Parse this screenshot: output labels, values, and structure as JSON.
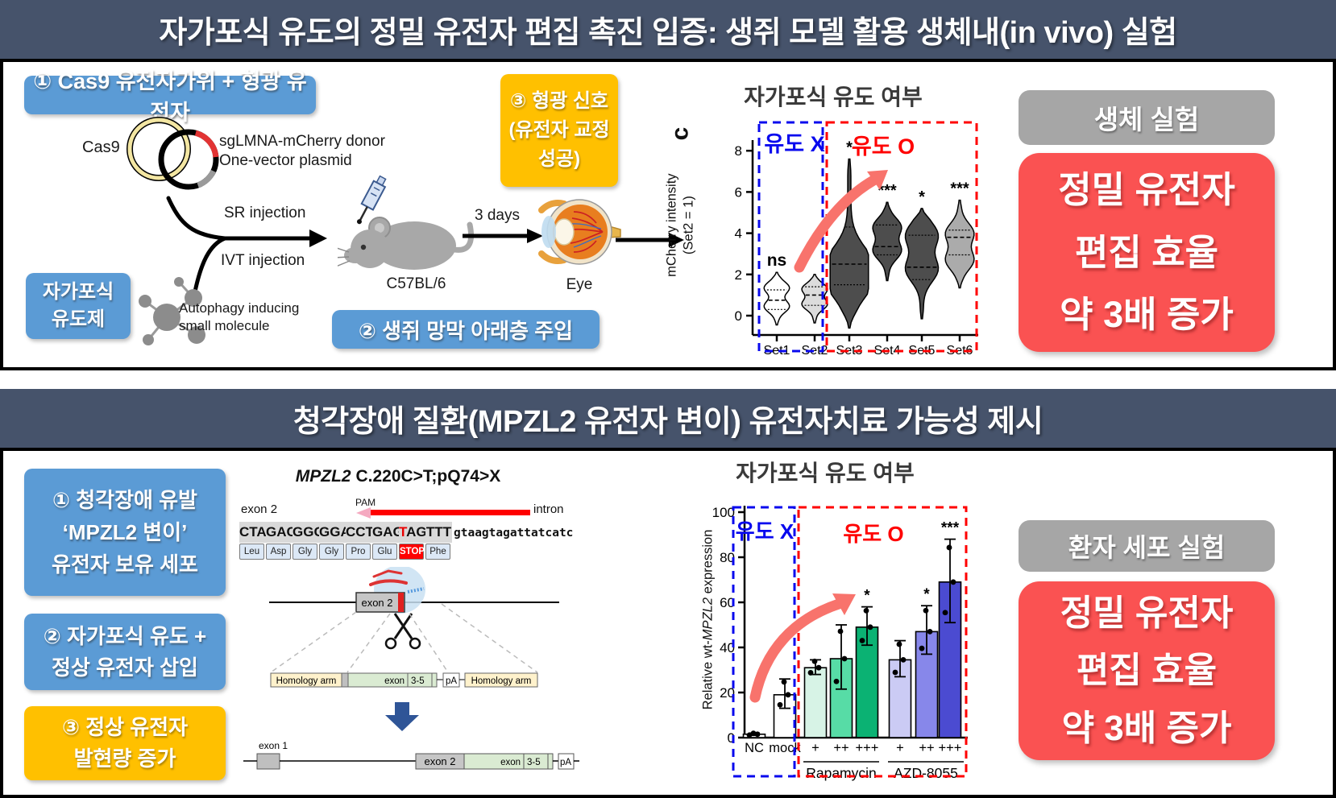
{
  "panel1": {
    "header": "자가포식 유도의 정밀 유전자 편집 촉진 입증: 생쥐 모델 활용 생체내(in vivo) 실험",
    "step1": "① Cas9 유전자가위 + 형광 유전자",
    "step2": "② 생쥐 망막 아래층 주입",
    "step3": [
      "③ 형광 신호",
      "(유전자 교정",
      "성공)"
    ],
    "inducer": [
      "자가포식",
      "유도제"
    ],
    "labels": {
      "cas9": "Cas9",
      "donor1": "sgLMNA-mCherry donor",
      "donor2": "One-vector plasmid",
      "sr": "SR injection",
      "ivt": "IVT injection",
      "molecule1": "Autophagy inducing",
      "molecule2": "small molecule",
      "mouse": "C57BL/6",
      "days": "3 days",
      "eye": "Eye",
      "panel_letter": "c"
    },
    "badge": "생체 실험",
    "result": [
      "정밀 유전자",
      "편집 효율",
      "약 3배 증가"
    ]
  },
  "panel2": {
    "header": "청각장애 질환(MPZL2 유전자 변이) 유전자치료 가능성 제시",
    "step1": [
      "① 청각장애 유발",
      "‘MPZL2 변이’",
      "유전자 보유 세포"
    ],
    "step2": [
      "② 자가포식 유도 +",
      "정상 유전자 삽입"
    ],
    "step3": [
      "③ 정상 유전자",
      "발현량 증가"
    ],
    "gene": {
      "title_gene": "MPZL2",
      "title_rest": " C.220C>T;pQ74>X",
      "exon2": "exon 2",
      "pam": "PAM",
      "intron": "intron",
      "codons": [
        "CTA",
        "GAC",
        "GGG",
        "GGA",
        "CCT",
        "GAG",
        "TAG",
        "TTT"
      ],
      "intron_seq": "gtaagtagattatcatc",
      "amino_acids": [
        "Leu",
        "Asp",
        "Gly",
        "Gly",
        "Pro",
        "Glu",
        "STOP",
        "Phe"
      ],
      "homology_arm": "Homology arm",
      "exon": "exon",
      "exon35": "3-5",
      "pa": "pA",
      "exon1": "exon 1",
      "exon2_box": "exon 2"
    },
    "badge": "환자 세포 실험",
    "result": [
      "정밀 유전자",
      "편집 효율",
      "약 3배 증가"
    ]
  },
  "chart_data": [
    {
      "type": "violin",
      "title": "자가포식 유도 여부",
      "ylabel_line1": "mCherry intensity",
      "ylabel_line2": "(Set2 = 1)",
      "ylim": [
        0,
        8
      ],
      "yticks": [
        0,
        2,
        4,
        6,
        8
      ],
      "categories": [
        "Set1",
        "Set2",
        "Set3",
        "Set4",
        "Set5",
        "Set6"
      ],
      "legend_no": "유도 X",
      "legend_yes": "유도 O",
      "groups": {
        "no_induction": [
          "Set1",
          "Set2"
        ],
        "induction": [
          "Set3",
          "Set4",
          "Set5",
          "Set6"
        ]
      },
      "violins": [
        {
          "set": "Set1",
          "range": [
            -0.45,
            2.1
          ],
          "bulges": [
            0.45,
            1.35
          ],
          "median": 0.75,
          "quartiles": [
            0.3,
            1.25
          ],
          "maxw": 34,
          "color": "#FFFFFF",
          "sig": "ns"
        },
        {
          "set": "Set2",
          "range": [
            -0.35,
            2.0
          ],
          "bulges": [
            0.55,
            1.3
          ],
          "median": 1.0,
          "quartiles": [
            0.5,
            1.4
          ],
          "maxw": 34,
          "color": "#DCDCDC",
          "sig": ""
        },
        {
          "set": "Set3",
          "range": [
            -0.6,
            7.6
          ],
          "bulges": [
            1.6,
            2.6
          ],
          "median": 2.5,
          "quartiles": [
            1.5,
            4.3
          ],
          "maxw": 46,
          "color": "#4D4D4D",
          "sig": "*"
        },
        {
          "set": "Set4",
          "range": [
            1.7,
            5.5
          ],
          "bulges": [
            3.15,
            4.3
          ],
          "median": 3.35,
          "quartiles": [
            2.95,
            4.4
          ],
          "maxw": 38,
          "color": "#4D4D4D",
          "sig": "***"
        },
        {
          "set": "Set5",
          "range": [
            -0.15,
            5.2
          ],
          "bulges": [
            2.25,
            3.9
          ],
          "median": 2.35,
          "quartiles": [
            1.75,
            3.9
          ],
          "maxw": 44,
          "color": "#4D4D4D",
          "sig": "*"
        },
        {
          "set": "Set6",
          "range": [
            1.35,
            5.6
          ],
          "bulges": [
            2.7,
            4.0
          ],
          "median": 3.8,
          "quartiles": [
            2.95,
            4.15
          ],
          "maxw": 38,
          "color": "#ABABAB",
          "sig": "***"
        }
      ]
    },
    {
      "type": "bar",
      "title": "자가포식 유도 여부",
      "ylabel_prefix": "Relative wt-",
      "ylabel_gene": "MPZL2",
      "ylabel_suffix": " expression",
      "ylim": [
        0,
        100
      ],
      "yticks": [
        0,
        20,
        40,
        60,
        80,
        100
      ],
      "categories": [
        "NC",
        "mock",
        "+",
        "++",
        "+++",
        "+",
        "++",
        "+++"
      ],
      "values": [
        1.5,
        19,
        31,
        35,
        49,
        34.5,
        47,
        69
      ],
      "err_low": [
        1,
        13,
        28,
        21.5,
        41,
        27,
        37,
        51
      ],
      "err_high": [
        2,
        26,
        34.5,
        50,
        58,
        43,
        58.5,
        88
      ],
      "significance": [
        "",
        "",
        "",
        "",
        "*",
        "",
        "*",
        "***"
      ],
      "bar_colors": [
        "#FFFFFF",
        "#FFFFFF",
        "#D7F3E6",
        "#57DCA6",
        "#0BB273",
        "#CBCBF4",
        "#8787EA",
        "#4B4BD1"
      ],
      "group_labels": [
        "Rapamycin",
        "AZD-8055"
      ],
      "legend_no": "유도 X",
      "legend_yes": "유도 O"
    }
  ],
  "colors": {
    "header_bg": "#46536B",
    "blue_box": "#5B9BD5",
    "yellow_box": "#FFC000",
    "red_box": "#FA5252",
    "gray_badge": "#A6A6A6",
    "arrow_salmon": "#F8736C"
  }
}
